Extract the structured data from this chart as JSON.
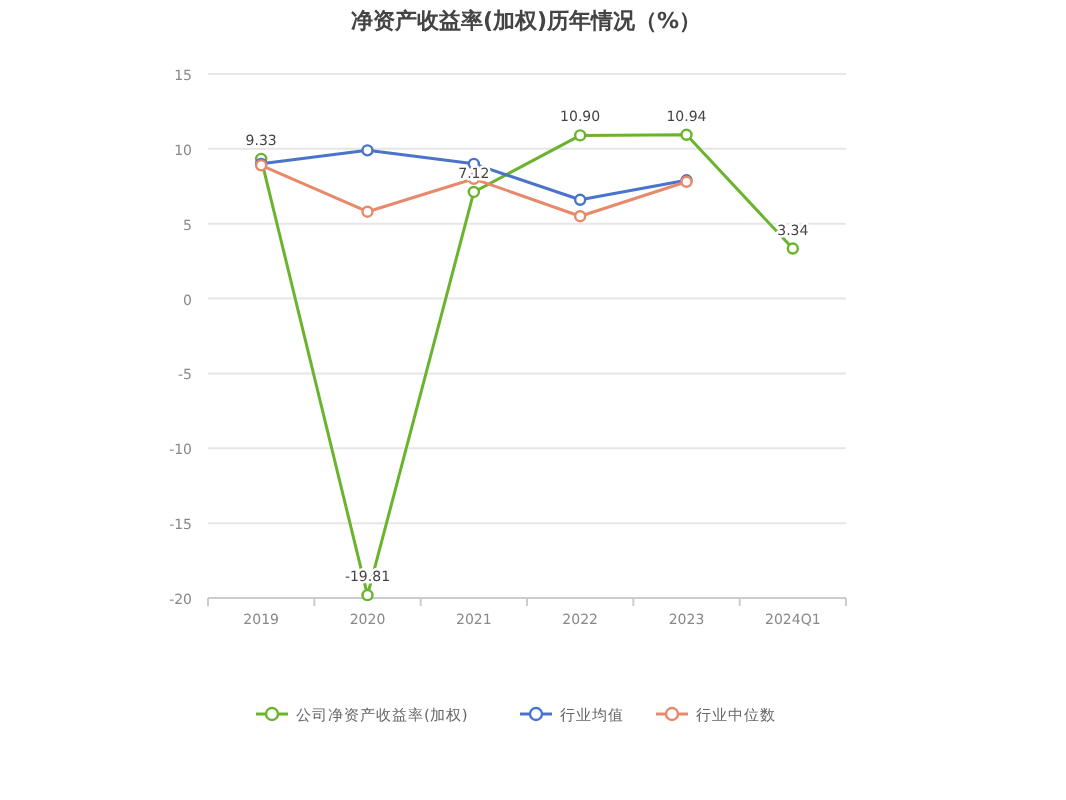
{
  "chart_data": {
    "type": "line",
    "title": "净资产收益率(加权)历年情况（%）",
    "categories": [
      "2019",
      "2020",
      "2021",
      "2022",
      "2023",
      "2024Q1"
    ],
    "series": [
      {
        "name": "公司净资产收益率(加权)",
        "color": "#6ab42d",
        "values": [
          9.33,
          -19.81,
          7.12,
          10.9,
          10.94,
          3.34
        ],
        "value_labels": [
          "9.33",
          "-19.81",
          "7.12",
          "10.90",
          "10.94",
          "3.34"
        ]
      },
      {
        "name": "行业均值",
        "color": "#4a74c9",
        "values": [
          9.0,
          9.9,
          9.0,
          6.6,
          7.9,
          null
        ]
      },
      {
        "name": "行业中位数",
        "color": "#e8896b",
        "values": [
          8.9,
          5.8,
          8.0,
          5.5,
          7.8,
          null
        ]
      }
    ],
    "ylim": [
      -20,
      15
    ],
    "yticks": [
      -20,
      -15,
      -10,
      -5,
      0,
      5,
      10,
      15
    ],
    "grid": "y",
    "legend": "bottom",
    "marker": "circle"
  }
}
